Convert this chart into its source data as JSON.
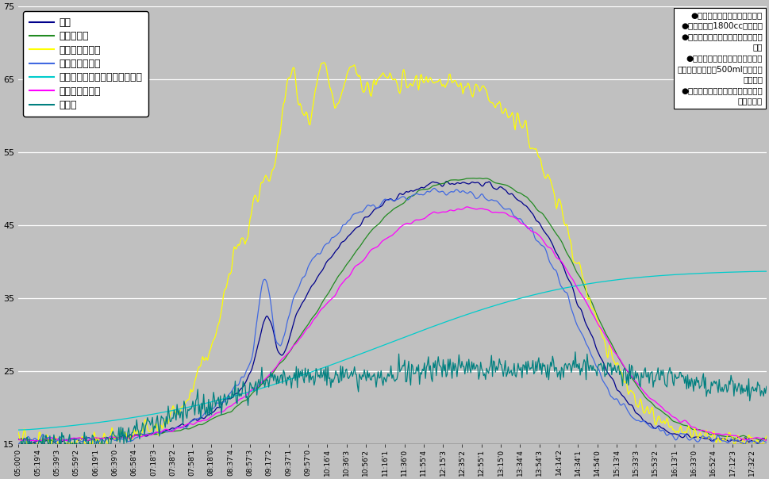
{
  "title": "",
  "ylabel": "",
  "xlabel": "",
  "ylim": [
    15,
    75
  ],
  "yticks": [
    15,
    25,
    35,
    45,
    55,
    65,
    75
  ],
  "bg_color": "#c0c0c0",
  "plot_bg_color": "#c0c0c0",
  "legend_labels": [
    "車内",
    "シート座面",
    "ダッシュボード",
    "フロントガラス",
    "置き忘れたペットボトルの水温",
    "タングプレート",
    "外気温"
  ],
  "line_colors": [
    "#00008b",
    "#228b22",
    "#ffff00",
    "#4169e1",
    "#00cccc",
    "#ff00ff",
    "#008080"
  ],
  "annotation_text": "●車両先頭を真南に向けて配置\n●テスト車は1800ccミニバン\n●シート座面はフロントシート助手\n席側\n●水温は、センターコンソールの\n純正スタンドに、500ml天然水を\n放置した\n●タングプレートは助手席シートベ\nルトのもの",
  "n_points": 760,
  "start_hour": 5.0,
  "end_hour": 17.7917
}
